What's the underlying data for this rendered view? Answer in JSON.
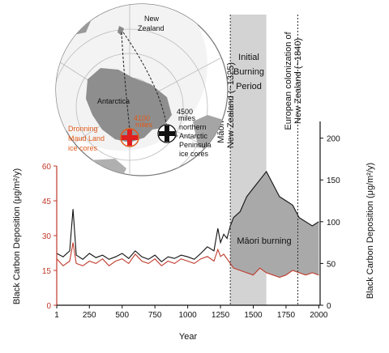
{
  "chart_data": {
    "type": "line",
    "title": "",
    "xlabel": "Year",
    "xlim": [
      1,
      2010
    ],
    "x_ticks": [
      "1",
      "250",
      "500",
      "750",
      "1000",
      "1250",
      "1500",
      "1750",
      "2000"
    ],
    "ylabel_left": "Black Carbon Deposition (μg/m²/y)",
    "ylim_left": [
      0,
      60
    ],
    "y_ticks_left": [
      "0",
      "15",
      "30",
      "45",
      "60"
    ],
    "left_color": "#c0392b",
    "ylabel_right": "Black Carbon Deposition (μg/m²/y)",
    "ylim_right": [
      0,
      220
    ],
    "y_ticks_right": [
      "0",
      "50",
      "100",
      "150",
      "200"
    ],
    "right_color": "#111111",
    "grid": false,
    "series": [
      {
        "axis": "left",
        "color": "#c0392b",
        "x": [
          1,
          50,
          100,
          125,
          150,
          200,
          250,
          300,
          350,
          400,
          450,
          500,
          550,
          600,
          650,
          700,
          750,
          800,
          850,
          900,
          950,
          1000,
          1050,
          1100,
          1150,
          1200,
          1230,
          1250,
          1275,
          1300,
          1325,
          1350,
          1400,
          1450,
          1500,
          1550,
          1600,
          1650,
          1700,
          1750,
          1800,
          1850,
          1900,
          1950,
          2000
        ],
        "values": [
          20,
          17,
          19,
          27,
          18,
          17,
          19,
          18,
          20,
          17,
          19,
          20,
          18,
          22,
          19,
          18,
          20,
          17,
          19,
          18,
          20,
          19,
          18,
          20,
          21,
          19,
          24,
          21,
          22,
          20,
          18,
          16,
          15,
          14,
          13,
          16,
          14,
          13,
          12,
          13,
          15,
          14,
          13,
          14,
          13
        ]
      },
      {
        "axis": "right",
        "color": "#111111",
        "x": [
          1,
          50,
          100,
          125,
          150,
          200,
          250,
          300,
          350,
          400,
          450,
          500,
          550,
          600,
          650,
          700,
          750,
          800,
          850,
          900,
          950,
          1000,
          1050,
          1100,
          1150,
          1200,
          1230,
          1250,
          1275,
          1300,
          1325,
          1350,
          1400,
          1450,
          1500,
          1550,
          1600,
          1650,
          1700,
          1750,
          1800,
          1850,
          1900,
          1950,
          2000
        ],
        "values": [
          62,
          58,
          65,
          115,
          60,
          55,
          62,
          57,
          60,
          55,
          58,
          62,
          56,
          65,
          58,
          55,
          60,
          52,
          58,
          56,
          60,
          58,
          55,
          62,
          70,
          65,
          92,
          75,
          85,
          80,
          95,
          105,
          112,
          130,
          140,
          150,
          160,
          145,
          130,
          125,
          120,
          105,
          100,
          95,
          100
        ]
      }
    ],
    "annotations": {
      "maori_settlement": {
        "label_line1": "Māori settlement of",
        "label_line2": "New Zealand (~1325)",
        "year": 1325
      },
      "european_colonization": {
        "label_line1": "European colonization of",
        "label_line2": "New Zealand (~1840)",
        "year": 1840
      },
      "burning_period": {
        "label_line1": "Initial",
        "label_line2": "Burning",
        "label_line3": "Period",
        "x_start": 1325,
        "x_end": 1600
      },
      "maori_burning": {
        "label": "Māori burning"
      }
    }
  },
  "inset_map": {
    "new_zealand_line1": "New",
    "new_zealand_line2": "Zealand",
    "antarctica": "Antarctica",
    "distance_dml": "4100",
    "distance_dml_unit": "miles",
    "distance_ap": "4500",
    "distance_ap_unit": "miles",
    "dml_line1": "Dronning",
    "dml_line2": "Maud Land",
    "dml_line3": "ice cores",
    "ap_line1": "northern",
    "ap_line2": "Antarctic",
    "ap_line3": "Peninsula",
    "ap_line4": "ice cores",
    "dml_color": "#e05a1a",
    "ap_color": "#111111"
  }
}
